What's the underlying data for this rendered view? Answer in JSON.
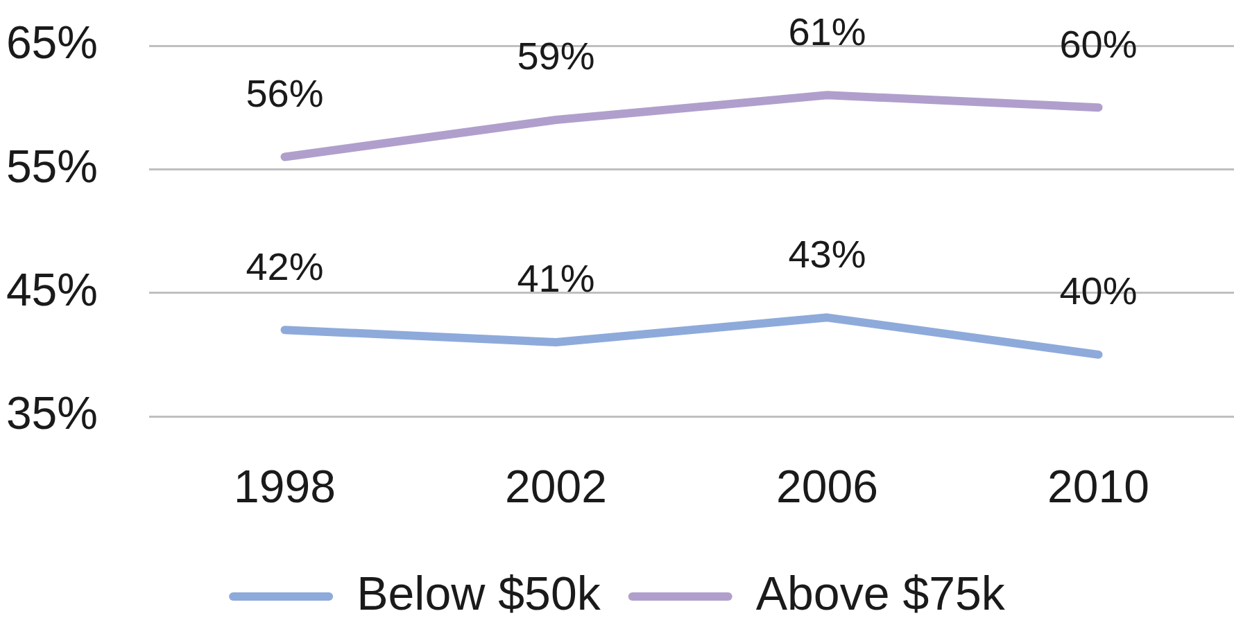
{
  "chart_data": {
    "type": "line",
    "categories": [
      "1998",
      "2002",
      "2006",
      "2010"
    ],
    "series": [
      {
        "name": "Below $50k",
        "color": "#8eaadb",
        "values": [
          42,
          41,
          43,
          40
        ],
        "value_labels": [
          "42%",
          "41%",
          "43%",
          "40%"
        ]
      },
      {
        "name": "Above $75k",
        "color": "#b09fcc",
        "values": [
          56,
          59,
          61,
          60
        ],
        "value_labels": [
          "56%",
          "59%",
          "61%",
          "60%"
        ]
      }
    ],
    "ylim": [
      35,
      65
    ],
    "yticks": [
      {
        "value": 35,
        "label": "35%"
      },
      {
        "value": 45,
        "label": "45%"
      },
      {
        "value": 55,
        "label": "55%"
      },
      {
        "value": 65,
        "label": "65%"
      }
    ],
    "grid": "y",
    "legend": "bottom",
    "line_style": "solid"
  }
}
